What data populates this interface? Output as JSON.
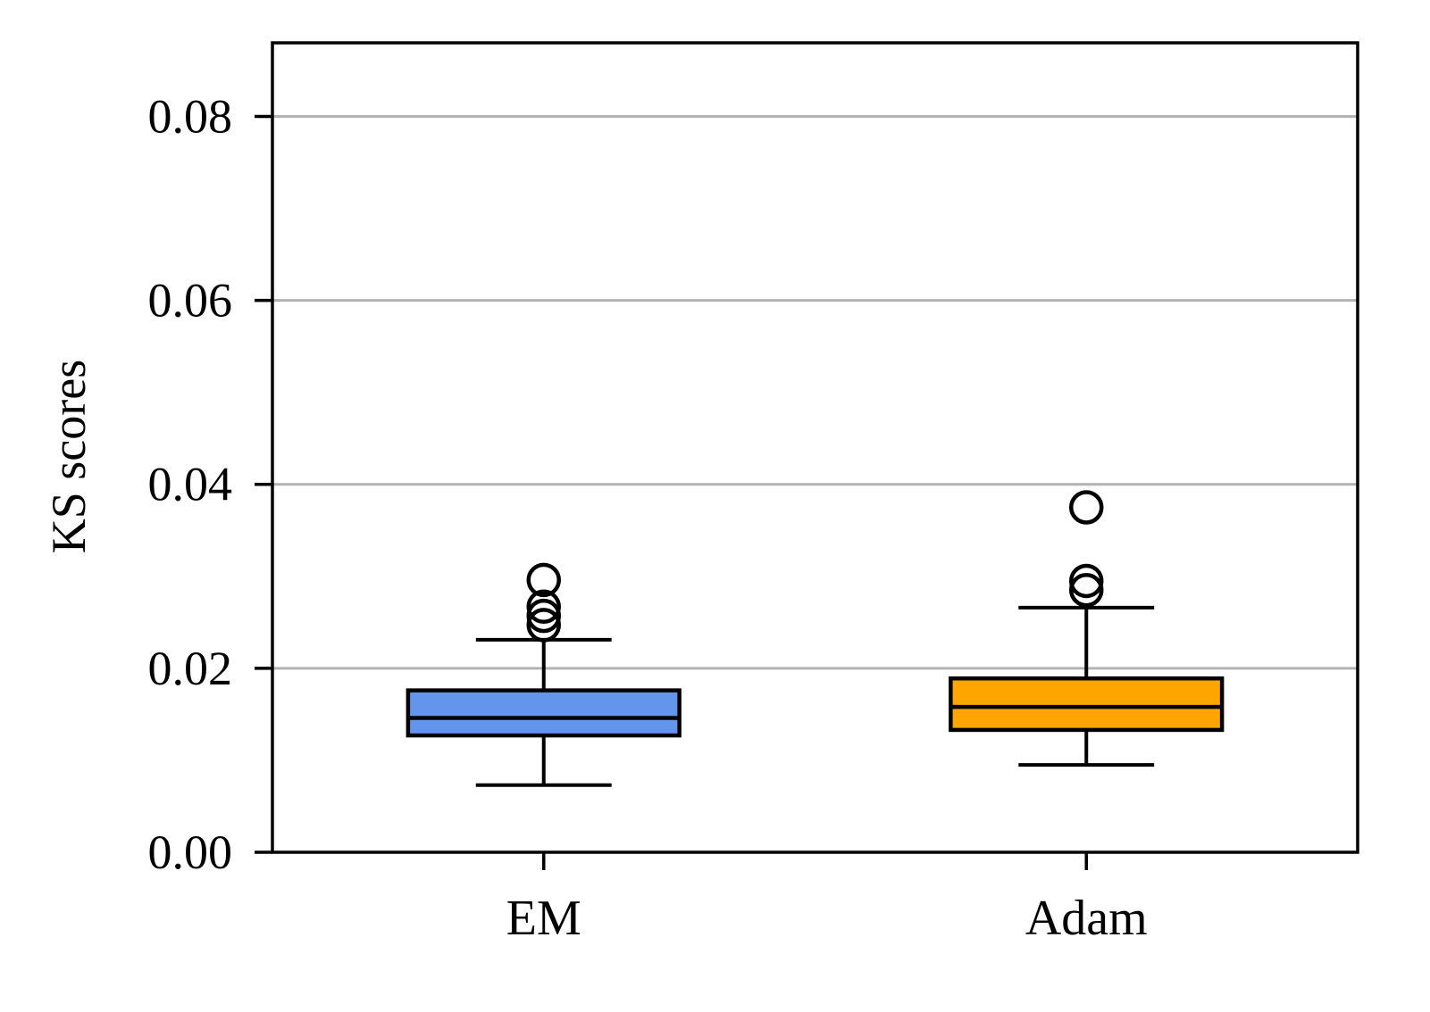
{
  "chart_data": {
    "type": "box",
    "title": "",
    "xlabel": "",
    "ylabel": "KS scores",
    "ylim": [
      0.0,
      0.088
    ],
    "yticks": [
      "0.00",
      "0.02",
      "0.04",
      "0.06",
      "0.08"
    ],
    "ytick_values": [
      0.0,
      0.02,
      0.04,
      0.06,
      0.08
    ],
    "grid": {
      "y": true,
      "x": false,
      "color": "#b3b3b3"
    },
    "legend": "none",
    "categories": [
      "EM",
      "Adam"
    ],
    "boxes": [
      {
        "name": "EM",
        "color": "#6495ed",
        "whisker_low": 0.0073,
        "q1": 0.0127,
        "median": 0.0146,
        "q3": 0.0176,
        "whisker_high": 0.0231,
        "outliers": [
          0.0296,
          0.0267,
          0.0257,
          0.0247
        ]
      },
      {
        "name": "Adam",
        "color": "#ffa500",
        "whisker_low": 0.0095,
        "q1": 0.0133,
        "median": 0.0158,
        "q3": 0.0189,
        "whisker_high": 0.0266,
        "outliers": [
          0.0375,
          0.0295,
          0.0285
        ]
      }
    ]
  }
}
